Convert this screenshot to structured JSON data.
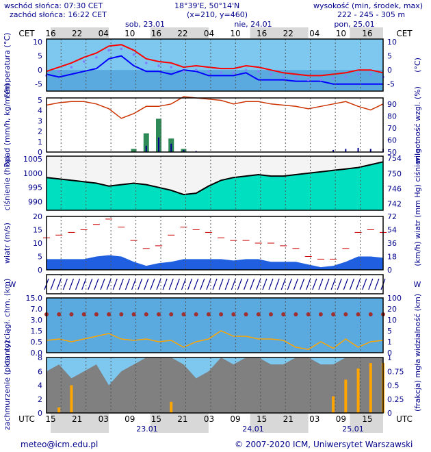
{
  "header": {
    "sunrise": "wschód słońca: 07:30 CET",
    "sunset": "zachód słońca: 16:22 CET",
    "coords": "18°39'E, 50°14'N",
    "grid": "(x=210, y=460)",
    "elev_label": "wysokość (min, środek, max)",
    "elev_values": "222 - 245 - 305 m"
  },
  "footer": {
    "email": "meteo@icm.edu.pl",
    "copyright": "© 2007-2020 ICM, Uniwersytet Warszawski"
  },
  "time_axis": {
    "top_tz": "CET",
    "bottom_tz": "UTC",
    "day_labels_top": [
      "sob, 23.01",
      "nie, 24.01",
      "pon, 25.01"
    ],
    "day_labels_bottom": [
      "23.01",
      "24.01",
      "25.01"
    ],
    "hours_top": [
      "16",
      "22",
      "04",
      "10",
      "16",
      "22",
      "04",
      "10",
      "16",
      "22",
      "04",
      "10",
      "16"
    ],
    "hours_bottom": [
      "15",
      "21",
      "03",
      "09",
      "15",
      "21",
      "03",
      "09",
      "15",
      "21",
      "03",
      "09",
      "15"
    ]
  },
  "colors": {
    "frame": "#000000",
    "text": "#00008b",
    "temp": "#ff0000",
    "dew": "#0000ff",
    "humidity": "#cc3300",
    "pressure_fill": "#00e0c0",
    "wind_line": "#0000ff",
    "gust": "#cc0000",
    "rain": "#2e8b57",
    "snow": "#00008b",
    "vis": "#ffa500",
    "cloud_total": "#808080",
    "fog": "#ffa500"
  },
  "chart_data": [
    {
      "type": "line",
      "name": "temperatura",
      "ylabel": "temperatura (°C)",
      "ylabel_right": "(°C)",
      "yticks": [
        -5,
        0,
        5,
        10
      ],
      "ylim": [
        -7.5,
        11
      ],
      "hours": [
        0,
        3,
        6,
        9,
        12,
        15,
        18,
        21,
        24,
        27,
        30,
        33,
        36,
        39,
        42,
        45,
        48,
        51,
        54,
        57,
        60,
        63,
        66,
        69,
        72,
        75,
        78,
        81
      ],
      "series": [
        {
          "name": "temp",
          "values": [
            -0.5,
            1,
            2.5,
            4.5,
            6,
            8.5,
            9,
            7,
            4,
            3,
            2.5,
            1,
            1.5,
            1,
            0.5,
            0.5,
            1.5,
            1,
            0,
            -1,
            -1.5,
            -2,
            -2,
            -1.5,
            -1,
            0,
            0,
            -1
          ]
        },
        {
          "name": "dew",
          "values": [
            -1.5,
            -2.5,
            -1.5,
            -0.5,
            0.5,
            4,
            5,
            1.5,
            -0.5,
            -0.5,
            -1.5,
            0,
            -0.5,
            -2,
            -2,
            -2,
            -1,
            -3.5,
            -3.5,
            -3.5,
            -4,
            -4,
            -4,
            -5,
            -5,
            -5,
            -5,
            -5
          ]
        }
      ]
    },
    {
      "type": "line",
      "name": "opad",
      "ylabel": "opad (mm/h, kg/m²/h)",
      "ylabel_right": "wilgotność wzgl. (%)",
      "yticks": [
        0,
        1,
        2,
        3,
        4,
        5
      ],
      "yticks_right": [
        50,
        60,
        70,
        80,
        90
      ],
      "ylim": [
        0,
        5.2
      ],
      "hours": [
        0,
        3,
        6,
        9,
        12,
        15,
        18,
        21,
        24,
        27,
        30,
        33,
        36,
        39,
        42,
        45,
        48,
        51,
        54,
        57,
        60,
        63,
        66,
        69,
        72,
        75,
        78,
        81
      ],
      "series": [
        {
          "name": "humidity",
          "values": [
            89,
            91,
            92,
            92,
            90,
            86,
            78,
            82,
            88,
            88,
            90,
            96,
            95,
            94,
            93,
            90,
            92,
            92,
            90,
            89,
            88,
            86,
            88,
            90,
            92,
            88,
            85,
            90
          ]
        },
        {
          "name": "rain",
          "values": [
            0,
            0,
            0,
            0,
            0,
            0,
            0,
            0.3,
            1.8,
            3.2,
            1.3,
            0.3,
            0,
            0,
            0,
            0,
            0,
            0,
            0,
            0,
            0,
            0,
            0,
            0,
            0,
            0,
            0,
            0
          ]
        },
        {
          "name": "snow",
          "values": [
            0,
            0,
            0,
            0,
            0,
            0,
            0,
            0,
            0.6,
            1.4,
            0.8,
            0.2,
            0.1,
            0,
            0,
            0,
            0,
            0,
            0,
            0,
            0,
            0,
            0,
            0.2,
            0.3,
            0.4,
            0.3,
            0.3
          ]
        }
      ]
    },
    {
      "type": "area",
      "name": "ciśnienie",
      "ylabel": "ciśnienie (hPa)",
      "ylabel_right": "(mm Hg) ciśnienie",
      "yticks": [
        990,
        995,
        1000,
        1005
      ],
      "yticks_right": [
        742,
        746,
        750,
        754
      ],
      "ylim": [
        987,
        1006
      ],
      "hours": [
        0,
        3,
        6,
        9,
        12,
        15,
        18,
        21,
        24,
        27,
        30,
        33,
        36,
        39,
        42,
        45,
        48,
        51,
        54,
        57,
        60,
        63,
        66,
        69,
        72,
        75,
        78,
        81
      ],
      "series": [
        {
          "name": "pressure",
          "values": [
            998.5,
            998,
            997.5,
            997,
            996.5,
            995.5,
            996,
            996.5,
            996,
            995,
            994,
            992.5,
            993,
            995.5,
            997.5,
            998.5,
            999,
            999.5,
            999,
            999,
            999.5,
            1000,
            1000.5,
            1001,
            1001.5,
            1002,
            1003,
            1004
          ]
        }
      ]
    },
    {
      "type": "area",
      "name": "wiatr",
      "ylabel": "wiatr (m/s)",
      "ylabel_right": "(km/h) wiatr",
      "yticks": [
        0,
        5,
        10,
        15,
        20
      ],
      "yticks_right": [
        0,
        18,
        36,
        54,
        72
      ],
      "ylim": [
        0,
        20
      ],
      "hours": [
        0,
        3,
        6,
        9,
        12,
        15,
        18,
        21,
        24,
        27,
        30,
        33,
        36,
        39,
        42,
        45,
        48,
        51,
        54,
        57,
        60,
        63,
        66,
        69,
        72,
        75,
        78,
        81
      ],
      "series": [
        {
          "name": "wind",
          "values": [
            4,
            4,
            4,
            4,
            5,
            5.5,
            5,
            3,
            1.5,
            2.5,
            3,
            4,
            4,
            4,
            4,
            3.5,
            4,
            4,
            3,
            3,
            3,
            2,
            1,
            1.5,
            3,
            5,
            5,
            4.5
          ]
        },
        {
          "name": "gust",
          "values": [
            12,
            13,
            14,
            15,
            17,
            19,
            16,
            11,
            8,
            9,
            13,
            16,
            15,
            14,
            12,
            11,
            11,
            10,
            10,
            9,
            8,
            5,
            4,
            4,
            8,
            14,
            15,
            14
          ]
        }
      ]
    },
    {
      "type": "line",
      "name": "chmury",
      "ylabel": "pion. rozciągł. chm. (km)",
      "ylabel_right": "widzialność (km)",
      "yticks": [
        "0.0",
        "0.5",
        "1.5",
        "3.0",
        "7.0",
        "15.0"
      ],
      "yticks_right": [
        0,
        1,
        5,
        10,
        20,
        100
      ],
      "hours": [
        0,
        3,
        6,
        9,
        12,
        15,
        18,
        21,
        24,
        27,
        30,
        33,
        36,
        39,
        42,
        45,
        48,
        51,
        54,
        57,
        60,
        63,
        66,
        69,
        72,
        75,
        78,
        81
      ],
      "series": [
        {
          "name": "visibility",
          "values": [
            1.5,
            2,
            1,
            2,
            3,
            4,
            2,
            1.5,
            2,
            1,
            1.5,
            0.5,
            1,
            2,
            5,
            3,
            3,
            2,
            2,
            1.5,
            0.5,
            0.3,
            1,
            0.4,
            2,
            0.5,
            1,
            1.5
          ]
        }
      ]
    },
    {
      "type": "area",
      "name": "zachmurzenie",
      "ylabel": "zachmurzenie (oktanty)",
      "ylabel_right": "(frakcja) mgła",
      "yticks": [
        0,
        2,
        4,
        6,
        8
      ],
      "yticks_right": [
        "0",
        "0.25",
        "0.5",
        "0.75",
        "1"
      ],
      "ylim": [
        0,
        8
      ],
      "hours": [
        0,
        3,
        6,
        9,
        12,
        15,
        18,
        21,
        24,
        27,
        30,
        33,
        36,
        39,
        42,
        45,
        48,
        51,
        54,
        57,
        60,
        63,
        66,
        69,
        72,
        75,
        78,
        81
      ],
      "series": [
        {
          "name": "cloud_total",
          "values": [
            6,
            7,
            5,
            6,
            7,
            4,
            6,
            7,
            8,
            8,
            8,
            7,
            5,
            6,
            8,
            7,
            8,
            8,
            7,
            7,
            8,
            8,
            7,
            7,
            8,
            8,
            8,
            8
          ]
        },
        {
          "name": "fog",
          "values": [
            0,
            0.1,
            0.5,
            0,
            0,
            0,
            0,
            0,
            0,
            0,
            0.2,
            0,
            0,
            0,
            0,
            0,
            0,
            0,
            0,
            0,
            0,
            0,
            0,
            0.3,
            0.6,
            0.8,
            0.9,
            0.9
          ]
        }
      ]
    }
  ]
}
